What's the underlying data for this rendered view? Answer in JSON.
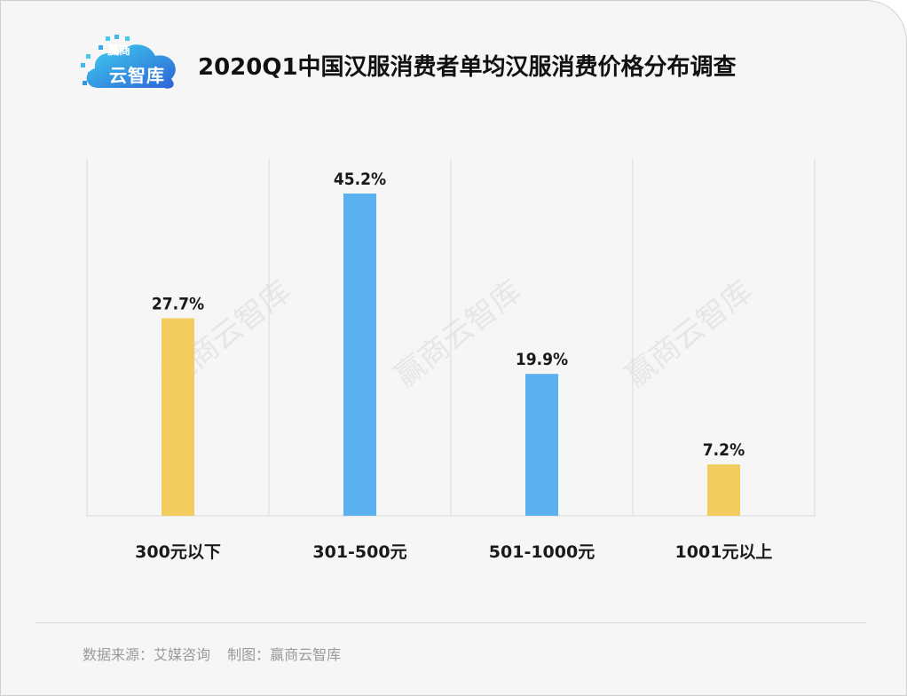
{
  "logo": {
    "top_text": "赢商",
    "main_text": "云智库"
  },
  "title": "2020Q1中国汉服消费者单均汉服消费价格分布调查",
  "watermark": "赢商云智库",
  "colors": {
    "yellow": "#f3cc5e",
    "blue": "#5bb0f0",
    "grid": "#d9d9d9",
    "label": "#1a1a1a"
  },
  "chart_data": {
    "type": "bar",
    "title": "2020Q1中国汉服消费者单均汉服消费价格分布调查",
    "categories": [
      "300元以下",
      "301-500元",
      "501-1000元",
      "1001元以上"
    ],
    "values": [
      27.7,
      45.2,
      19.9,
      7.2
    ],
    "data_labels": [
      "27.7%",
      "45.2%",
      "19.9%",
      "7.2%"
    ],
    "bar_colors": [
      "#f3cc5e",
      "#5bb0f0",
      "#5bb0f0",
      "#f3cc5e"
    ],
    "ylim": [
      0,
      50
    ],
    "grid": "vertical separators",
    "xlabel": "",
    "ylabel": ""
  },
  "footer": {
    "source": "数据来源：艾媒咨询",
    "credit": "制图：赢商云智库"
  }
}
